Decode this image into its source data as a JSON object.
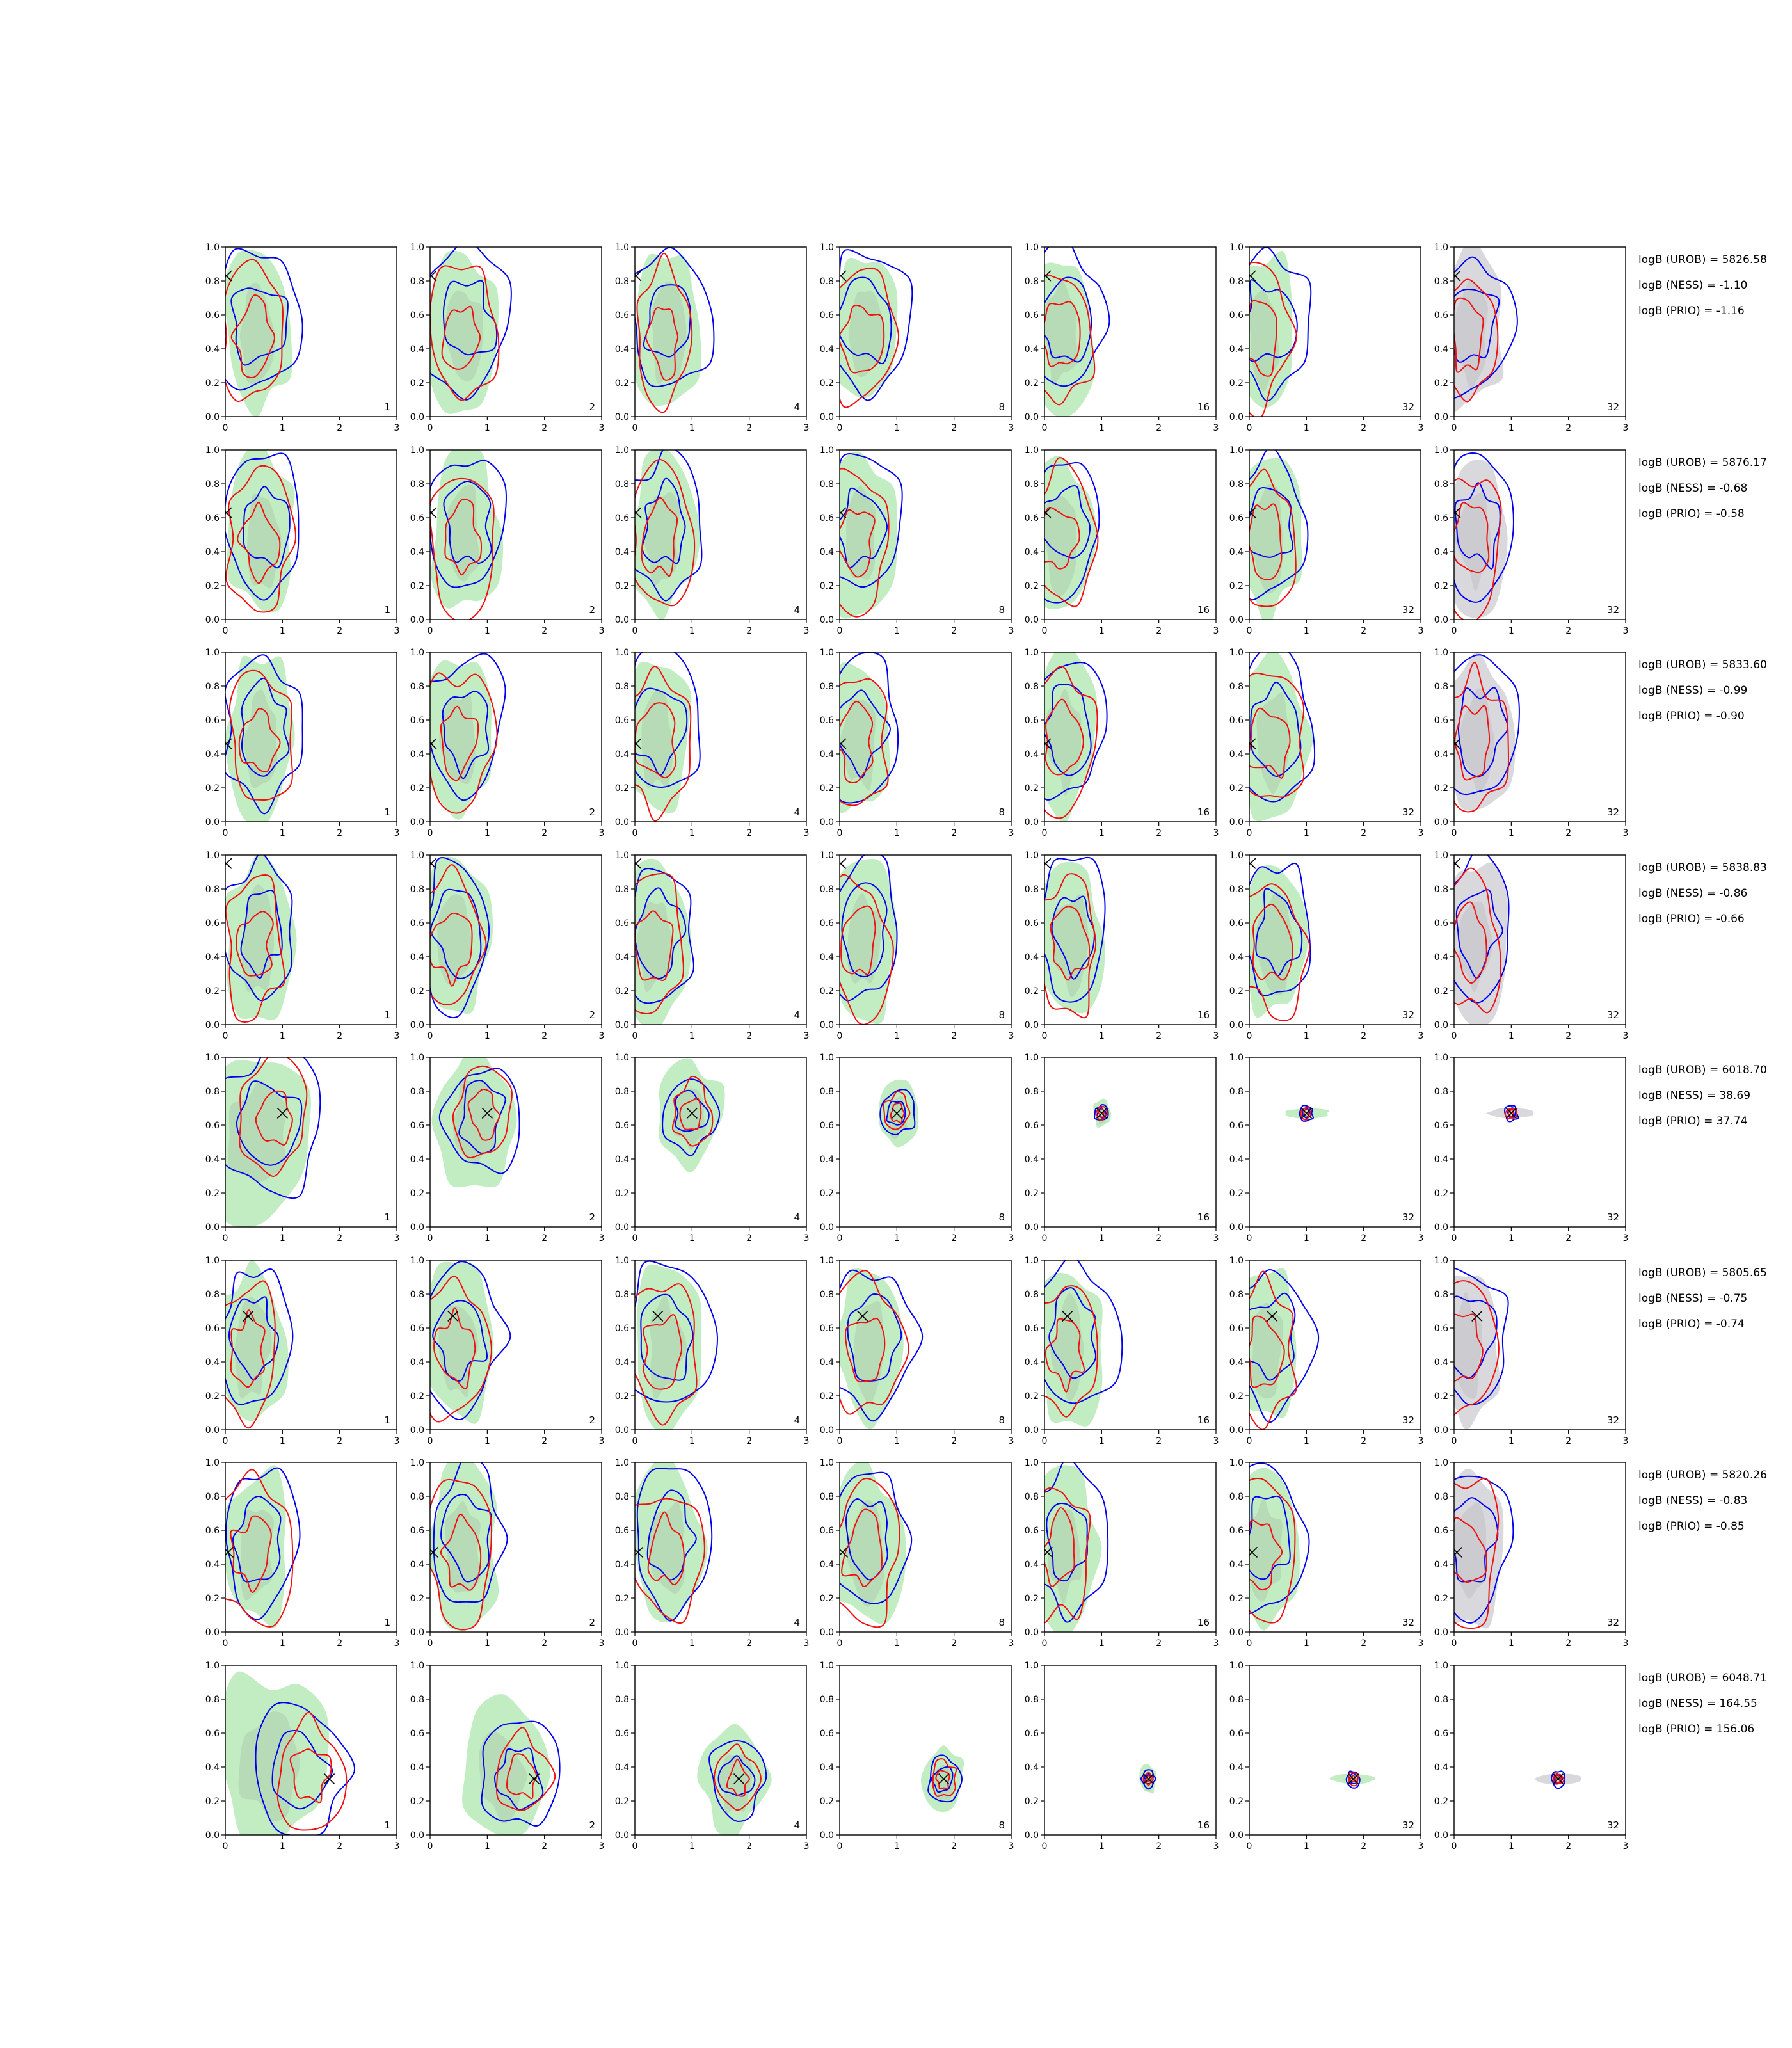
{
  "figure": {
    "panel_labels": [
      "1",
      "2",
      "4",
      "8",
      "16",
      "32",
      "32"
    ],
    "colors": {
      "cred_blue": "#0000ee",
      "cred_red": "#ee1111",
      "fill_green": "#c2ecc2",
      "fill_green_inner": "#b0d4b0",
      "fill_grey": "#d9d9dd",
      "fill_grey_inner": "#c6c6cb",
      "marker": "#000000"
    }
  },
  "chart_data": {
    "type": "contour",
    "grid": {
      "rows": 8,
      "cols": 7
    },
    "x_ticks": [
      "0",
      "1",
      "2",
      "3"
    ],
    "y_ticks": [
      "0.0",
      "0.2",
      "0.4",
      "0.6",
      "0.8",
      "1.0"
    ],
    "xlim": [
      0,
      3
    ],
    "ylim": [
      0,
      1
    ],
    "rows": [
      {
        "true_point": [
          0.02,
          0.83
        ],
        "logB": [
          "logB (UROB) = 5826.58",
          "logB (NESS) = -1.10",
          "logB (PRIO) = -1.16"
        ],
        "concentrated": false
      },
      {
        "true_point": [
          0.02,
          0.63
        ],
        "logB": [
          "logB (UROB) = 5876.17",
          "logB (NESS) = -0.68",
          "logB (PRIO) = -0.58"
        ],
        "concentrated": false
      },
      {
        "true_point": [
          0.02,
          0.46
        ],
        "logB": [
          "logB (UROB) = 5833.60",
          "logB (NESS) = -0.99",
          "logB (PRIO) = -0.90"
        ],
        "concentrated": false
      },
      {
        "true_point": [
          0.02,
          0.95
        ],
        "logB": [
          "logB (UROB) = 5838.83",
          "logB (NESS) = -0.86",
          "logB (PRIO) = -0.66"
        ],
        "concentrated": false
      },
      {
        "true_point": [
          1.0,
          0.67
        ],
        "logB": [
          "logB (UROB) = 6018.70",
          "logB (NESS) = 38.69",
          "logB (PRIO) = 37.74"
        ],
        "concentrated": true
      },
      {
        "true_point": [
          0.4,
          0.67
        ],
        "logB": [
          "logB (UROB) = 5805.65",
          "logB (NESS) = -0.75",
          "logB (PRIO) = -0.74"
        ],
        "concentrated": false
      },
      {
        "true_point": [
          0.05,
          0.47
        ],
        "logB": [
          "logB (UROB) = 5820.26",
          "logB (NESS) = -0.83",
          "logB (PRIO) = -0.85"
        ],
        "concentrated": false
      },
      {
        "true_point": [
          1.82,
          0.33
        ],
        "logB": [
          "logB (UROB) = 6048.71",
          "logB (NESS) = 164.55",
          "logB (PRIO) = 156.06"
        ],
        "concentrated": true
      }
    ]
  }
}
